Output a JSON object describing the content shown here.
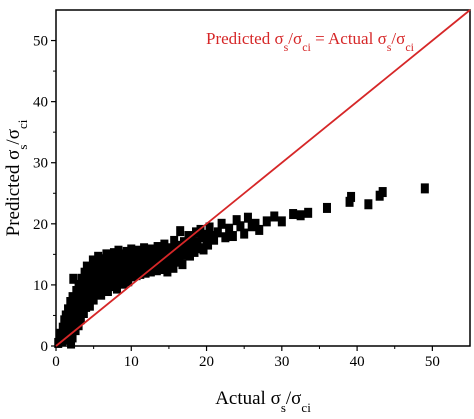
{
  "chart_data": {
    "type": "scatter",
    "xlabel": {
      "pre": "Actual σ",
      "sub1": "s",
      "mid": "/σ",
      "sub2": "ci"
    },
    "ylabel": {
      "pre": "Predicted σ",
      "sub1": "s",
      "mid": "/σ",
      "sub2": "ci"
    },
    "annotation": {
      "pre": "Predicted σ",
      "sub1": "s",
      "mid": "/σ",
      "sub2": "ci",
      "eq": " = Actual σ",
      "sub3": "s",
      "mid2": "/σ",
      "sub4": "ci"
    },
    "xlim": [
      0,
      55
    ],
    "ylim": [
      0,
      55
    ],
    "xticks": [
      0,
      10,
      20,
      30,
      40,
      50
    ],
    "yticks": [
      0,
      10,
      20,
      30,
      40,
      50
    ],
    "line_color": "#d62728",
    "marker_color": "#000000",
    "reference_line": {
      "x": [
        0,
        55
      ],
      "y": [
        0,
        55
      ]
    },
    "points": [
      [
        0.3,
        0.5
      ],
      [
        0.5,
        1.2
      ],
      [
        0.6,
        2.0
      ],
      [
        0.8,
        0.8
      ],
      [
        0.9,
        3.0
      ],
      [
        1.0,
        1.6
      ],
      [
        1.1,
        4.2
      ],
      [
        1.2,
        2.4
      ],
      [
        1.3,
        5.0
      ],
      [
        1.4,
        1.0
      ],
      [
        1.5,
        3.4
      ],
      [
        1.6,
        6.0
      ],
      [
        1.7,
        2.0
      ],
      [
        1.8,
        4.6
      ],
      [
        1.9,
        7.2
      ],
      [
        2.0,
        0.4
      ],
      [
        2.0,
        3.0
      ],
      [
        2.1,
        5.4
      ],
      [
        2.2,
        8.0
      ],
      [
        2.2,
        1.4
      ],
      [
        2.3,
        11.0
      ],
      [
        2.4,
        4.0
      ],
      [
        2.5,
        6.4
      ],
      [
        2.6,
        2.6
      ],
      [
        2.7,
        9.0
      ],
      [
        2.8,
        5.2
      ],
      [
        2.9,
        7.4
      ],
      [
        3.0,
        3.4
      ],
      [
        3.0,
        10.0
      ],
      [
        3.1,
        6.0
      ],
      [
        3.2,
        8.4
      ],
      [
        3.3,
        4.4
      ],
      [
        3.4,
        11.0
      ],
      [
        3.5,
        7.0
      ],
      [
        3.6,
        9.4
      ],
      [
        3.7,
        5.4
      ],
      [
        3.8,
        12.0
      ],
      [
        3.9,
        8.0
      ],
      [
        4.0,
        6.4
      ],
      [
        4.0,
        10.4
      ],
      [
        4.1,
        13.0
      ],
      [
        4.2,
        7.2
      ],
      [
        4.3,
        9.0
      ],
      [
        4.4,
        11.4
      ],
      [
        4.5,
        6.6
      ],
      [
        4.6,
        12.6
      ],
      [
        4.7,
        8.2
      ],
      [
        4.8,
        10.2
      ],
      [
        4.9,
        14.0
      ],
      [
        5.0,
        7.6
      ],
      [
        5.0,
        11.6
      ],
      [
        5.1,
        9.6
      ],
      [
        5.2,
        13.2
      ],
      [
        5.3,
        8.6
      ],
      [
        5.4,
        12.2
      ],
      [
        5.5,
        10.6
      ],
      [
        5.6,
        14.6
      ],
      [
        5.7,
        9.2
      ],
      [
        5.8,
        11.2
      ],
      [
        5.9,
        13.6
      ],
      [
        6.0,
        8.4
      ],
      [
        6.0,
        10.0
      ],
      [
        6.1,
        12.6
      ],
      [
        6.2,
        14.2
      ],
      [
        6.3,
        9.6
      ],
      [
        6.4,
        11.6
      ],
      [
        6.5,
        13.4
      ],
      [
        6.6,
        10.4
      ],
      [
        6.7,
        15.0
      ],
      [
        6.8,
        12.0
      ],
      [
        6.9,
        9.0
      ],
      [
        7.0,
        13.8
      ],
      [
        7.0,
        11.0
      ],
      [
        7.1,
        10.2
      ],
      [
        7.2,
        14.6
      ],
      [
        7.3,
        12.4
      ],
      [
        7.4,
        9.8
      ],
      [
        7.5,
        13.0
      ],
      [
        7.6,
        11.4
      ],
      [
        7.7,
        15.2
      ],
      [
        7.8,
        10.6
      ],
      [
        7.9,
        12.8
      ],
      [
        8.0,
        14.0
      ],
      [
        8.0,
        11.8
      ],
      [
        8.1,
        9.4
      ],
      [
        8.2,
        13.4
      ],
      [
        8.3,
        15.6
      ],
      [
        8.4,
        12.2
      ],
      [
        8.5,
        10.8
      ],
      [
        8.6,
        14.4
      ],
      [
        8.7,
        11.6
      ],
      [
        8.8,
        13.0
      ],
      [
        8.9,
        15.0
      ],
      [
        9.0,
        12.4
      ],
      [
        9.0,
        10.2
      ],
      [
        9.1,
        14.2
      ],
      [
        9.2,
        11.2
      ],
      [
        9.3,
        13.6
      ],
      [
        9.4,
        15.4
      ],
      [
        9.5,
        12.0
      ],
      [
        9.6,
        10.6
      ],
      [
        9.7,
        14.8
      ],
      [
        9.8,
        13.2
      ],
      [
        9.9,
        11.8
      ],
      [
        10.0,
        15.8
      ],
      [
        10.0,
        12.6
      ],
      [
        10.1,
        14.0
      ],
      [
        10.2,
        11.4
      ],
      [
        10.3,
        13.4
      ],
      [
        10.4,
        15.2
      ],
      [
        10.5,
        12.2
      ],
      [
        10.6,
        14.6
      ],
      [
        10.7,
        11.6
      ],
      [
        10.8,
        13.8
      ],
      [
        10.9,
        15.6
      ],
      [
        11.0,
        12.8
      ],
      [
        11.0,
        14.4
      ],
      [
        11.2,
        11.8
      ],
      [
        11.3,
        13.2
      ],
      [
        11.4,
        15.0
      ],
      [
        11.5,
        12.4
      ],
      [
        11.6,
        14.2
      ],
      [
        11.7,
        16.0
      ],
      [
        11.8,
        13.0
      ],
      [
        11.9,
        12.0
      ],
      [
        12.0,
        14.8
      ],
      [
        12.1,
        13.6
      ],
      [
        12.2,
        12.6
      ],
      [
        12.3,
        15.4
      ],
      [
        12.4,
        14.0
      ],
      [
        12.5,
        13.2
      ],
      [
        12.6,
        12.2
      ],
      [
        12.7,
        15.8
      ],
      [
        12.8,
        14.4
      ],
      [
        12.9,
        13.4
      ],
      [
        13.0,
        12.8
      ],
      [
        13.1,
        15.0
      ],
      [
        13.2,
        14.2
      ],
      [
        13.3,
        13.8
      ],
      [
        13.4,
        12.4
      ],
      [
        13.5,
        16.2
      ],
      [
        13.6,
        14.6
      ],
      [
        13.8,
        13.0
      ],
      [
        14.0,
        15.2
      ],
      [
        14.1,
        12.6
      ],
      [
        14.2,
        14.0
      ],
      [
        14.4,
        16.6
      ],
      [
        14.5,
        13.6
      ],
      [
        14.6,
        15.4
      ],
      [
        14.8,
        12.2
      ],
      [
        15.0,
        14.8
      ],
      [
        15.1,
        13.2
      ],
      [
        15.2,
        16.0
      ],
      [
        15.4,
        14.4
      ],
      [
        15.6,
        12.8
      ],
      [
        15.7,
        17.2
      ],
      [
        15.8,
        15.0
      ],
      [
        16.0,
        13.8
      ],
      [
        16.2,
        16.4
      ],
      [
        16.4,
        14.6
      ],
      [
        16.5,
        18.8
      ],
      [
        16.6,
        15.6
      ],
      [
        16.8,
        13.4
      ],
      [
        17.0,
        17.0
      ],
      [
        17.2,
        15.0
      ],
      [
        17.4,
        16.2
      ],
      [
        17.6,
        18.0
      ],
      [
        17.8,
        14.8
      ],
      [
        18.0,
        17.6
      ],
      [
        18.2,
        16.4
      ],
      [
        18.4,
        15.4
      ],
      [
        18.6,
        18.6
      ],
      [
        18.8,
        17.0
      ],
      [
        19.0,
        16.0
      ],
      [
        19.2,
        19.0
      ],
      [
        19.4,
        17.8
      ],
      [
        19.6,
        15.8
      ],
      [
        19.8,
        18.2
      ],
      [
        20.0,
        17.2
      ],
      [
        20.2,
        16.6
      ],
      [
        20.4,
        19.4
      ],
      [
        20.6,
        18.0
      ],
      [
        21.0,
        17.4
      ],
      [
        21.5,
        18.6
      ],
      [
        22.0,
        20.0
      ],
      [
        22.5,
        17.8
      ],
      [
        23.0,
        19.2
      ],
      [
        23.5,
        18.0
      ],
      [
        24.0,
        20.6
      ],
      [
        24.5,
        19.6
      ],
      [
        25.0,
        18.4
      ],
      [
        25.5,
        21.0
      ],
      [
        26.0,
        19.6
      ],
      [
        26.5,
        20.0
      ],
      [
        27.0,
        19.0
      ],
      [
        28.0,
        20.4
      ],
      [
        29.0,
        21.2
      ],
      [
        30.0,
        20.4
      ],
      [
        31.5,
        21.6
      ],
      [
        32.5,
        21.4
      ],
      [
        33.5,
        21.8
      ],
      [
        36.0,
        22.6
      ],
      [
        39.0,
        23.6
      ],
      [
        39.2,
        24.4
      ],
      [
        41.5,
        23.2
      ],
      [
        43.0,
        24.6
      ],
      [
        43.4,
        25.2
      ],
      [
        49.0,
        25.8
      ]
    ]
  }
}
